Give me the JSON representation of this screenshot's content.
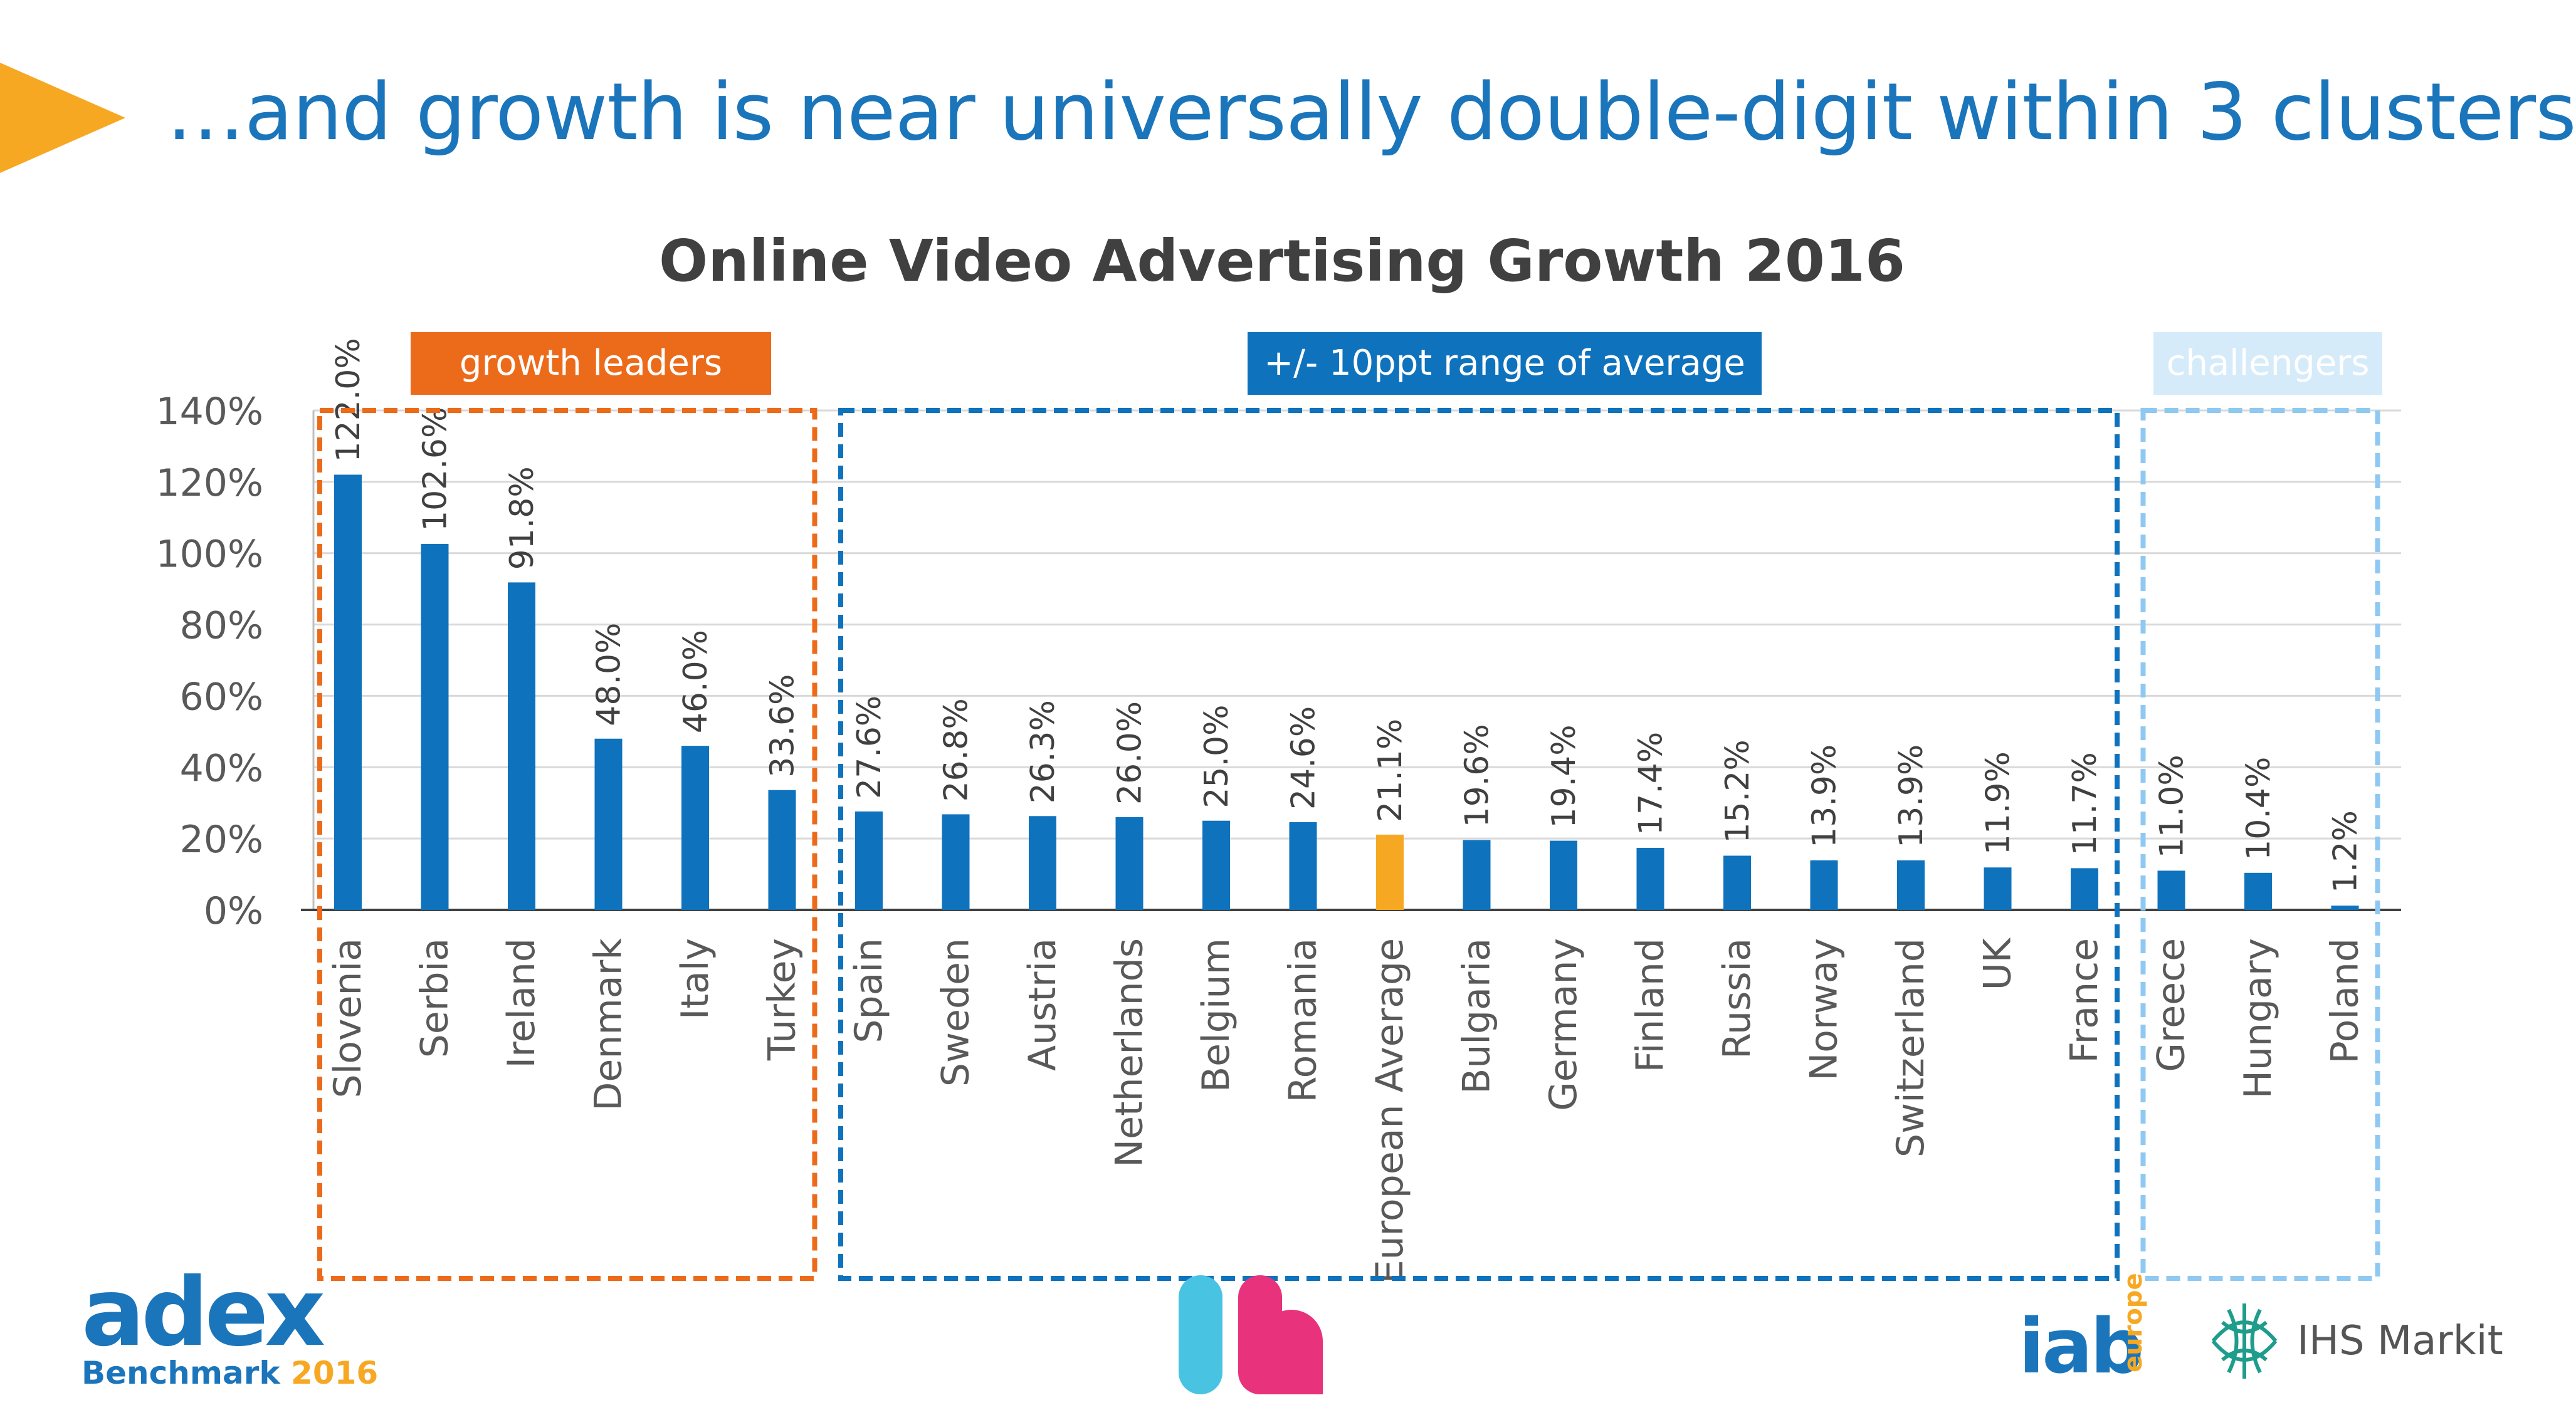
{
  "slide": {
    "headline": "…and growth is near universally double-digit within 3 clusters"
  },
  "colors": {
    "bar": "#0f72bd",
    "highlight": "#f7a823",
    "cluster_leaders": "#ec6b1a",
    "cluster_average": "#0f72bd",
    "cluster_challengers": "#8fc9f2",
    "headline": "#1b75bb"
  },
  "chart_data": {
    "type": "bar",
    "title": "Online Video Advertising Growth 2016",
    "xlabel": "",
    "ylabel": "",
    "ylim": [
      0,
      140
    ],
    "yticks": [
      "0%",
      "20%",
      "40%",
      "60%",
      "80%",
      "100%",
      "120%",
      "140%"
    ],
    "grid": true,
    "categories": [
      "Slovenia",
      "Serbia",
      "Ireland",
      "Denmark",
      "Italy",
      "Turkey",
      "Spain",
      "Sweden",
      "Austria",
      "Netherlands",
      "Belgium",
      "Romania",
      "European Average",
      "Bulgaria",
      "Germany",
      "Finland",
      "Russia",
      "Norway",
      "Switzerland",
      "UK",
      "France",
      "Greece",
      "Hungary",
      "Poland"
    ],
    "values": [
      122.0,
      102.6,
      91.8,
      48.0,
      46.0,
      33.6,
      27.6,
      26.8,
      26.3,
      26.0,
      25.0,
      24.6,
      21.1,
      19.6,
      19.4,
      17.4,
      15.2,
      13.9,
      13.9,
      11.9,
      11.7,
      11.0,
      10.4,
      1.2
    ],
    "data_labels": [
      "122.0%",
      "102.6%",
      "91.8%",
      "48.0%",
      "46.0%",
      "33.6%",
      "27.6%",
      "26.8%",
      "26.3%",
      "26.0%",
      "25.0%",
      "24.6%",
      "21.1%",
      "19.6%",
      "19.4%",
      "17.4%",
      "15.2%",
      "13.9%",
      "13.9%",
      "11.9%",
      "11.7%",
      "11.0%",
      "10.4%",
      "1.2%"
    ],
    "highlight_category": "European Average",
    "clusters": [
      {
        "label": "growth leaders",
        "first": 0,
        "last": 5,
        "style": "orange"
      },
      {
        "label": "+/- 10ppt range of average",
        "first": 6,
        "last": 20,
        "style": "blue"
      },
      {
        "label": "challengers",
        "first": 21,
        "last": 23,
        "style": "lightblue"
      }
    ]
  },
  "logos": {
    "adex": "adex",
    "adex_sub": "Benchmark",
    "adex_year": "2016",
    "iab": "iab",
    "iab_europe": "europe",
    "ihs": "IHS Markit"
  }
}
